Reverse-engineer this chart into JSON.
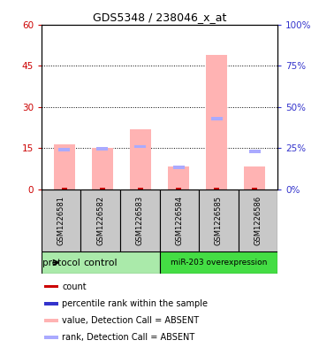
{
  "title": "GDS5348 / 238046_x_at",
  "samples": [
    "GSM1226581",
    "GSM1226582",
    "GSM1226583",
    "GSM1226584",
    "GSM1226585",
    "GSM1226586"
  ],
  "value_bars": [
    16.5,
    15.0,
    22.0,
    8.5,
    49.0,
    8.5
  ],
  "rank_bars_pct": [
    24.0,
    24.5,
    26.0,
    13.5,
    43.0,
    23.0
  ],
  "ylim_left": [
    0,
    60
  ],
  "ylim_right": [
    0,
    100
  ],
  "yticks_left": [
    0,
    15,
    30,
    45,
    60
  ],
  "yticks_right": [
    0,
    25,
    50,
    75,
    100
  ],
  "ytick_labels_left": [
    "0",
    "15",
    "30",
    "45",
    "60"
  ],
  "ytick_labels_right": [
    "0%",
    "25%",
    "50%",
    "75%",
    "100%"
  ],
  "bar_width": 0.55,
  "value_bar_color": "#FFB3B3",
  "rank_bar_color": "#AAAAFF",
  "count_color": "#CC0000",
  "percentile_color": "#3333CC",
  "grid_color": "#000000",
  "bg_color": "#C8C8C8",
  "plot_bg": "#FFFFFF",
  "ctrl_color": "#AAEAAA",
  "mir_color": "#44DD44"
}
